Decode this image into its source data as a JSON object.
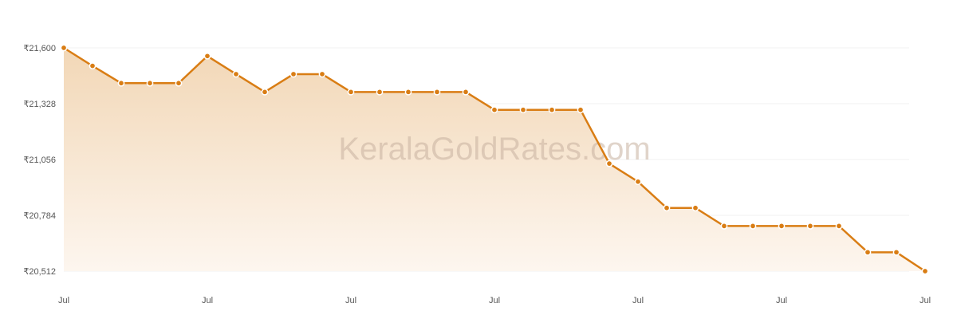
{
  "colors": {
    "line": "#d97d14",
    "fill_top": "#f2d7b6",
    "fill_bottom": "#fdf6ef",
    "grid": "#f0f0f0",
    "marker_stroke": "#ffffff"
  },
  "watermark": "KeralaGoldRates.com",
  "chart_data": {
    "type": "area",
    "title": "",
    "xlabel": "",
    "ylabel": "",
    "grid": true,
    "legend": "none",
    "y_ticks": [
      "₹21,600",
      "₹21,328",
      "₹21,056",
      "₹20,784",
      "₹20,512"
    ],
    "y_tick_values": [
      21600,
      21328,
      21056,
      20784,
      20512
    ],
    "ylim": [
      20512,
      21600
    ],
    "x_ticks": [
      "Jul",
      "Jul",
      "Jul",
      "Jul",
      "Jul",
      "Jul",
      "Jul"
    ],
    "x_tick_indices": [
      0,
      5,
      10,
      15,
      20,
      25,
      30
    ],
    "series": [
      {
        "values": [
          21600,
          21512,
          21428,
          21428,
          21428,
          21560,
          21472,
          21385,
          21472,
          21472,
          21385,
          21385,
          21385,
          21385,
          21385,
          21298,
          21298,
          21298,
          21298,
          21036,
          20948,
          20820,
          20820,
          20732,
          20732,
          20732,
          20732,
          20732,
          20604,
          20604,
          20512
        ]
      }
    ]
  }
}
